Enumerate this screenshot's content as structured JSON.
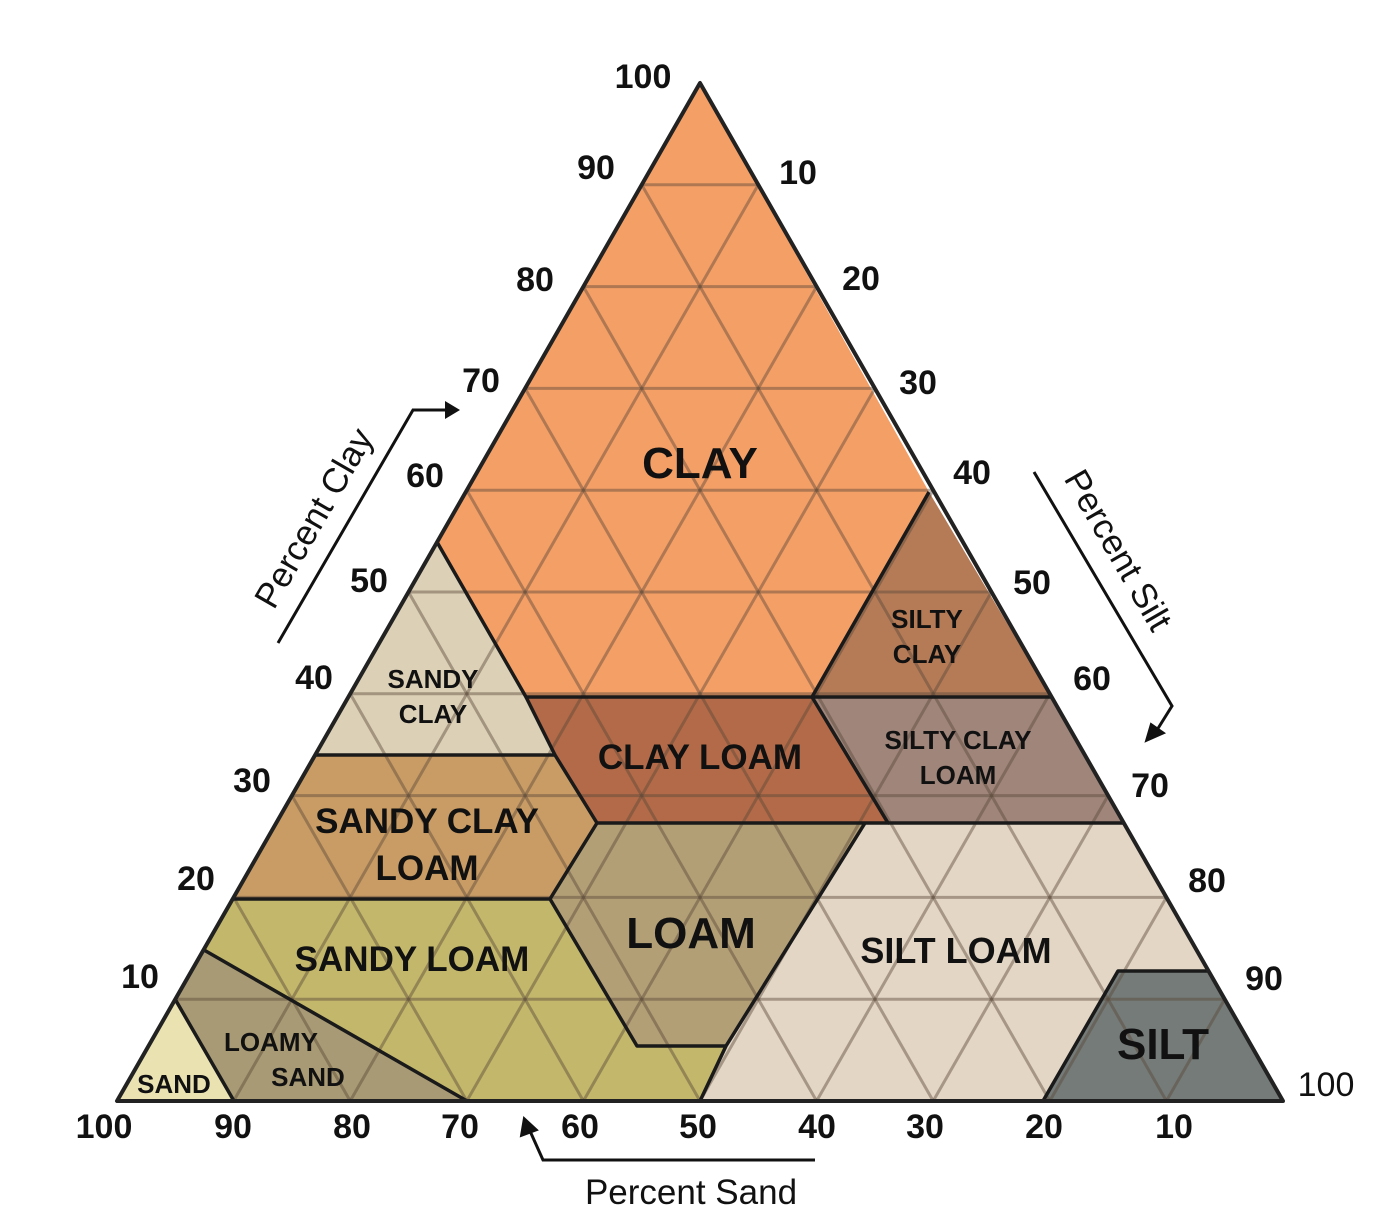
{
  "axes": {
    "clay": {
      "title": "Percent Clay",
      "ticks": [
        "100",
        "90",
        "80",
        "70",
        "60",
        "50",
        "40",
        "30",
        "20",
        "10"
      ]
    },
    "silt": {
      "title": "Percent Silt",
      "ticks": [
        "10",
        "20",
        "30",
        "40",
        "50",
        "60",
        "70",
        "80",
        "90"
      ],
      "corner_label": "100"
    },
    "sand": {
      "title": "Percent Sand",
      "ticks": [
        "100",
        "90",
        "80",
        "70",
        "60",
        "50",
        "40",
        "30",
        "20",
        "10"
      ]
    }
  },
  "regions": [
    {
      "key": "clay",
      "lines": [
        "CLAY"
      ],
      "color": "#f49f66",
      "vertices": [
        [
          0,
          100
        ],
        [
          45,
          55
        ],
        [
          20,
          40
        ],
        [
          45,
          40
        ],
        [
          45,
          45
        ],
        [
          60,
          40
        ]
      ]
    },
    {
      "key": "sandy-clay",
      "lines": [
        "SANDY",
        "CLAY"
      ],
      "color": "#dcd1b6",
      "vertices": [
        [
          45,
          55
        ],
        [
          45,
          35
        ],
        [
          65,
          35
        ],
        [
          45,
          55
        ]
      ]
    },
    {
      "key": "silty-clay",
      "lines": [
        "SILTY",
        "CLAY"
      ],
      "color": "#b57b57",
      "vertices": [
        [
          40,
          60
        ],
        [
          40,
          40
        ],
        [
          60,
          40
        ]
      ]
    },
    {
      "key": "clay-loam",
      "lines": [
        "CLAY LOAM"
      ],
      "color": "#b36a48",
      "vertices": [
        [
          40,
          45
        ],
        [
          27,
          45
        ],
        [
          27,
          20
        ],
        [
          40,
          20
        ]
      ]
    },
    {
      "key": "silty-clay-loam",
      "lines": [
        "SILTY CLAY",
        "LOAM"
      ],
      "color": "#9f857a",
      "vertices": [
        [
          40,
          40
        ],
        [
          27,
          40
        ],
        [
          27,
          20
        ],
        [
          40,
          20
        ]
      ]
    },
    {
      "key": "sandy-clay-loam",
      "lines": [
        "SANDY CLAY",
        "LOAM"
      ],
      "color": "#c89c64",
      "vertices": [
        [
          35,
          45
        ],
        [
          20,
          45
        ],
        [
          20,
          28
        ]
      ]
    },
    {
      "key": "loam",
      "lines": [
        "LOAM"
      ],
      "color": "#b39f76",
      "vertices": [
        [
          27,
          23
        ],
        [
          7,
          43
        ],
        [
          7,
          52
        ]
      ]
    },
    {
      "key": "silt-loam",
      "lines": [
        "SILT LOAM"
      ],
      "color": "#e3d6c5",
      "vertices": [
        [
          27,
          50
        ],
        [
          0,
          50
        ],
        [
          0,
          80
        ],
        [
          12,
          80
        ],
        [
          12,
          88
        ]
      ]
    },
    {
      "key": "sandy-loam",
      "lines": [
        "SANDY LOAM"
      ],
      "color": "#c3b76b",
      "vertices": [
        [
          20,
          80
        ],
        [
          7,
          52
        ],
        [
          0,
          50
        ]
      ]
    },
    {
      "key": "loamy-sand",
      "lines": [
        "LOAMY",
        "SAND"
      ],
      "color": "#a89a74",
      "vertices": [
        [
          15,
          85
        ],
        [
          0,
          90
        ],
        [
          0,
          70
        ]
      ]
    },
    {
      "key": "sand",
      "lines": [
        "SAND"
      ],
      "color": "#ebe2b2",
      "vertices": [
        [
          10,
          90
        ],
        [
          0,
          100
        ],
        [
          0,
          90
        ]
      ]
    },
    {
      "key": "silt",
      "lines": [
        "SILT"
      ],
      "color": "#747b78",
      "vertices": [
        [
          12,
          8
        ],
        [
          0,
          0
        ],
        [
          0,
          20
        ]
      ]
    }
  ]
}
